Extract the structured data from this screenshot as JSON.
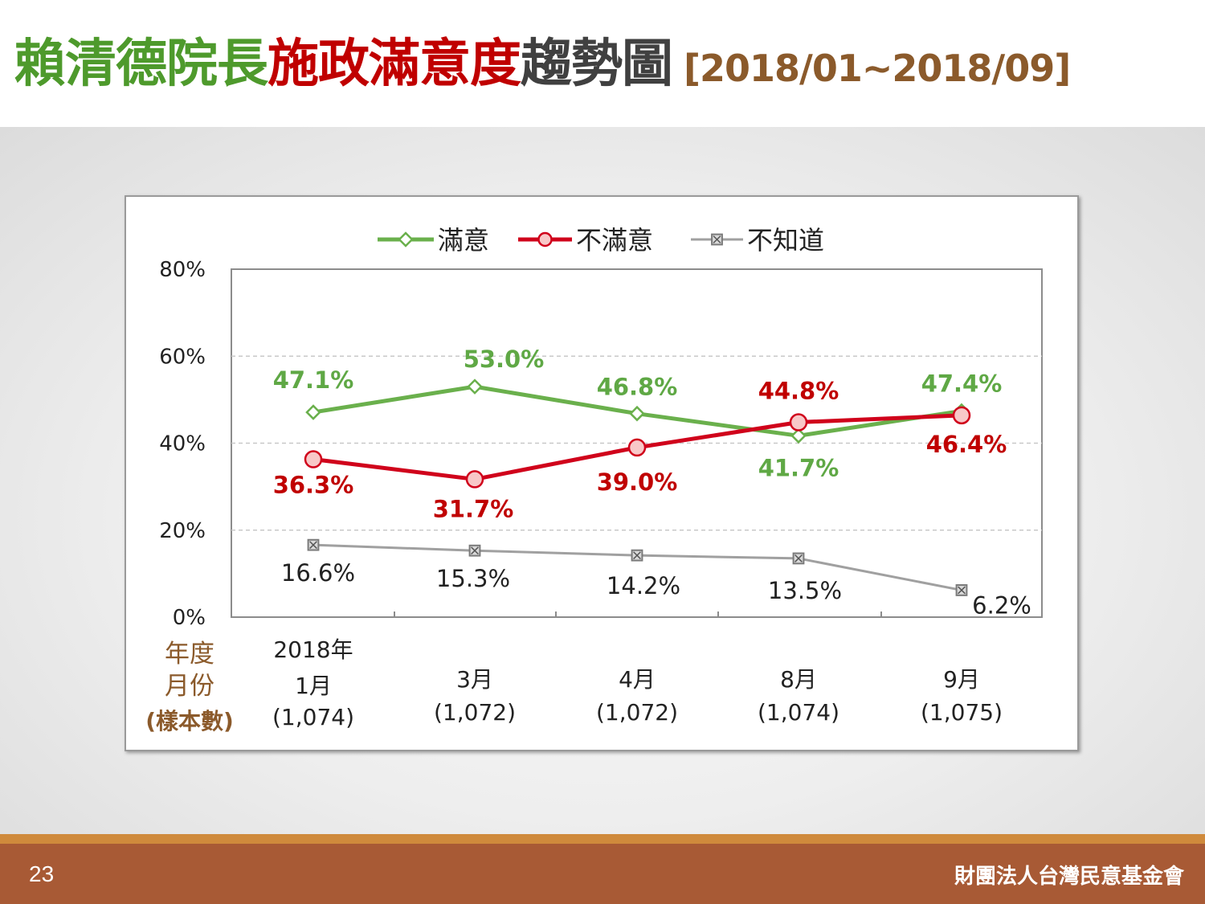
{
  "title": {
    "part1": "賴清德院長",
    "part2": "施政滿意度",
    "part3": "趨勢圖",
    "range": "[2018/01~2018/09]",
    "colors": {
      "part1": "#4e9a2c",
      "part2": "#c00000",
      "part3": "#404040",
      "range": "#8b5a2b"
    }
  },
  "footer": {
    "page_number": "23",
    "organization": "財團法人台灣民意基金會"
  },
  "chart_data": {
    "type": "line",
    "title": "",
    "ylim": [
      0,
      80
    ],
    "yticks": [
      "80%",
      "60%",
      "40%",
      "20%",
      "0%"
    ],
    "ytick_values": [
      80,
      60,
      40,
      20,
      0
    ],
    "grid": true,
    "legend_position": "top",
    "row_header": [
      "年度",
      "月份",
      "(樣本數)"
    ],
    "categories": [
      {
        "year": "2018年",
        "month": "1月",
        "sample": "(1,074)"
      },
      {
        "year": "",
        "month": "3月",
        "sample": "(1,072)"
      },
      {
        "year": "",
        "month": "4月",
        "sample": "(1,072)"
      },
      {
        "year": "",
        "month": "8月",
        "sample": "(1,074)"
      },
      {
        "year": "",
        "month": "9月",
        "sample": "(1,075)"
      }
    ],
    "series": [
      {
        "name": "滿意",
        "color": "#6ab04c",
        "label_color": "#5fa845",
        "marker": "diamond",
        "values": [
          47.1,
          53.0,
          46.8,
          41.7,
          47.4
        ],
        "labels": [
          "47.1%",
          "53.0%",
          "46.8%",
          "41.7%",
          "47.4%"
        ]
      },
      {
        "name": "不滿意",
        "color": "#d0021b",
        "label_color": "#c00000",
        "marker": "circle",
        "values": [
          36.3,
          31.7,
          39.0,
          44.8,
          46.4
        ],
        "labels": [
          "36.3%",
          "31.7%",
          "39.0%",
          "44.8%",
          "46.4%"
        ]
      },
      {
        "name": "不知道",
        "color": "#a0a0a0",
        "label_color": "#222222",
        "marker": "square-x",
        "values": [
          16.6,
          15.3,
          14.2,
          13.5,
          6.2
        ],
        "labels": [
          "16.6%",
          "15.3%",
          "14.2%",
          "13.5%",
          "6.2%"
        ]
      }
    ]
  }
}
